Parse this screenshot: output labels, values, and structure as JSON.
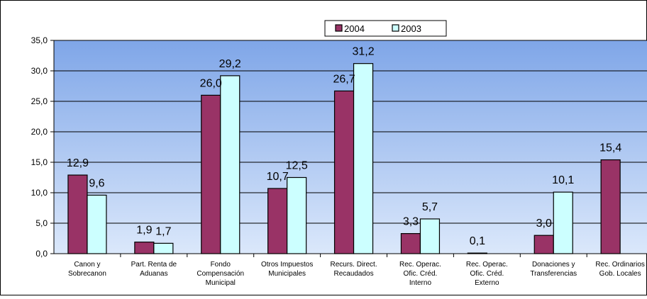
{
  "chart_data": {
    "type": "bar",
    "title": "",
    "xlabel": "",
    "ylabel": "",
    "ylim": [
      0,
      35
    ],
    "yticks": [
      "0,0",
      "5,0",
      "10,0",
      "15,0",
      "20,0",
      "25,0",
      "30,0",
      "35,0"
    ],
    "grid": true,
    "legend_position": "top",
    "categories": [
      [
        "Canon y",
        "Sobrecanon"
      ],
      [
        "Part. Renta de",
        "Aduanas"
      ],
      [
        "Fondo",
        "Compensación",
        "Municipal"
      ],
      [
        "Otros Impuestos",
        "Municipales"
      ],
      [
        "Recurs. Direct.",
        "Recaudados"
      ],
      [
        "Rec. Operac.",
        "Ofic. Créd.",
        "Interno"
      ],
      [
        "Rec. Operac.",
        "Ofic. Créd.",
        "Externo"
      ],
      [
        "Donaciones y",
        "Transferencias"
      ],
      [
        "Rec. Ordinarios",
        "Gob. Locales"
      ]
    ],
    "series": [
      {
        "name": "2004",
        "color": "#993366",
        "values": [
          12.9,
          1.9,
          26.0,
          10.7,
          26.7,
          3.3,
          0.1,
          3.0,
          15.4
        ],
        "labels": [
          "12,9",
          "1,9",
          "26,0",
          "10,7",
          "26,7",
          "3,3",
          "0,1",
          "3,0",
          "15,4"
        ]
      },
      {
        "name": "2003",
        "color": "#ccffff",
        "values": [
          9.6,
          1.7,
          29.2,
          12.5,
          31.2,
          5.7,
          null,
          10.1,
          null
        ],
        "labels": [
          "9,6",
          "1,7",
          "29,2",
          "12,5",
          "31,2",
          "5,7",
          "",
          "10,1",
          ""
        ]
      }
    ],
    "colors": {
      "plot_top": "#7fa6e8",
      "plot_bottom": "#dbe8fb",
      "outer_bg": "#ffffff"
    }
  }
}
